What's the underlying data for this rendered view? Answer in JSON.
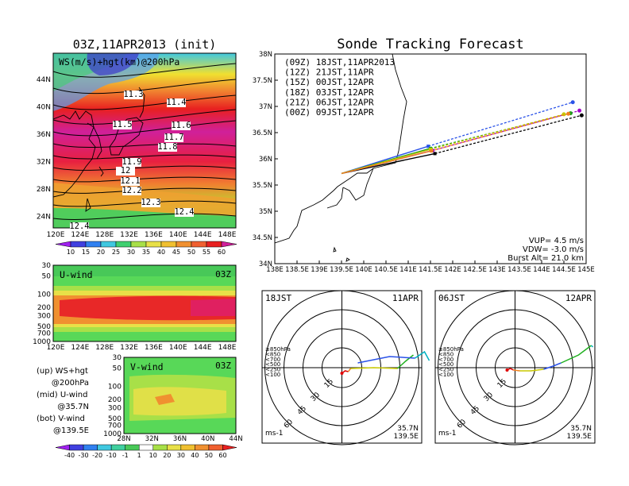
{
  "left": {
    "title": "03Z,11APR2013 (init)",
    "map_label": "WS(m/s)+hgt(km)@200hPa",
    "map_lat_ticks": [
      "44N",
      "40N",
      "36N",
      "32N",
      "28N",
      "24N"
    ],
    "lon_ticks": [
      "120E",
      "124E",
      "128E",
      "132E",
      "136E",
      "140E",
      "144E",
      "148E"
    ],
    "contour_labels": [
      "11.3",
      "11.4",
      "11.5",
      "11.6",
      "11.7",
      "11.8",
      "11.9",
      "12",
      "12.1",
      "12.2",
      "12.3",
      "12.4",
      "12.4"
    ],
    "colorbar_top": [
      "10",
      "15",
      "20",
      "25",
      "30",
      "35",
      "40",
      "45",
      "50",
      "55",
      "60"
    ],
    "uwind": {
      "label": "U-wind",
      "time": "03Z",
      "p_ticks": [
        "30",
        "50",
        "100",
        "200",
        "300",
        "500",
        "700",
        "1000"
      ]
    },
    "vwind": {
      "label": "V-wind",
      "time": "03Z",
      "p_ticks": [
        "30",
        "50",
        "100",
        "200",
        "300",
        "500",
        "700",
        "1000"
      ],
      "lat_ticks": [
        "28N",
        "32N",
        "36N",
        "40N",
        "44N"
      ]
    },
    "legend_lines": [
      "(up) WS+hgt",
      "@200hPa",
      "(mid) U-wind",
      "@35.7N",
      "(bot) V-wind",
      "@139.5E"
    ],
    "colorbar_bottom": [
      "-40",
      "-30",
      "-20",
      "-10",
      "-1",
      "1",
      "10",
      "20",
      "30",
      "40",
      "50",
      "60"
    ]
  },
  "right": {
    "title": "Sonde Tracking Forecast",
    "legend": [
      {
        "text": "(09Z)  18JST,11APR2013",
        "color": "#000000"
      },
      {
        "text": "(12Z)  21JST,11APR",
        "color": "#a000c8"
      },
      {
        "text": "(15Z)  00JST,12APR",
        "color": "#2a52e8"
      },
      {
        "text": "(18Z)  03JST,12APR",
        "color": "#1aa01a"
      },
      {
        "text": "(21Z)  06JST,12APR",
        "color": "#c8c800"
      },
      {
        "text": "(00Z)  09JST,12APR",
        "color": "#f08020"
      }
    ],
    "info": [
      "VUP= 4.5 m/s",
      "VDW= -3.0 m/s",
      "Burst Alt= 21.0 km"
    ],
    "lat_ticks": [
      "38N",
      "37.5N",
      "37N",
      "36.5N",
      "36N",
      "35.5N",
      "35N",
      "34.5N",
      "34N"
    ],
    "lon_ticks": [
      "138E",
      "138.5E",
      "139E",
      "139.5E",
      "140E",
      "140.5E",
      "141E",
      "141.5E",
      "142E",
      "142.5E",
      "143E",
      "143.5E",
      "144E",
      "144.5E",
      "145E"
    ],
    "hodo1": {
      "left": "18JST",
      "right": "11APR",
      "loc1": "35.7N",
      "loc2": "139.5E",
      "unit": "ms-1"
    },
    "hodo2": {
      "left": "06JST",
      "right": "12APR",
      "loc1": "35.7N",
      "loc2": "139.5E",
      "unit": "ms-1"
    },
    "ring_labels": [
      "15",
      "30",
      "45",
      "60"
    ],
    "hodo_legend": [
      {
        "text": "≥850hPa",
        "color": "#e00000"
      },
      {
        "text": "<850",
        "color": "#f08020"
      },
      {
        "text": "<700",
        "color": "#c8c800"
      },
      {
        "text": "<500",
        "color": "#20b020"
      },
      {
        "text": "<250",
        "color": "#00b0c0"
      },
      {
        "text": "<100",
        "color": "#2a52e8"
      }
    ]
  },
  "chart_data": [
    {
      "type": "line",
      "title": "Sonde Tracking Forecast",
      "xlabel": "",
      "ylabel": "",
      "xlim": [
        138,
        145
      ],
      "ylim": [
        34,
        38
      ],
      "series": [
        {
          "name": "(09Z) 18JST,11APR2013",
          "x": [
            139.5,
            141.6,
            144.9
          ],
          "y": [
            35.72,
            36.1,
            36.83
          ]
        },
        {
          "name": "(12Z) 21JST,11APR",
          "x": [
            139.5,
            141.55,
            144.85
          ],
          "y": [
            35.72,
            36.16,
            36.92
          ]
        },
        {
          "name": "(15Z) 00JST,12APR",
          "x": [
            139.5,
            141.45,
            144.7
          ],
          "y": [
            35.72,
            36.24,
            37.08
          ]
        },
        {
          "name": "(18Z) 03JST,12APR",
          "x": [
            139.5,
            141.5,
            144.65
          ],
          "y": [
            35.72,
            36.2,
            36.87
          ]
        },
        {
          "name": "(21Z) 06JST,12APR",
          "x": [
            139.5,
            141.5,
            144.5
          ],
          "y": [
            35.72,
            36.18,
            36.85
          ]
        },
        {
          "name": "(00Z) 09JST,12APR",
          "x": [
            139.5,
            141.52,
            144.6
          ],
          "y": [
            35.72,
            36.15,
            36.86
          ]
        }
      ]
    },
    {
      "type": "heatmap",
      "title": "03Z,11APR2013 (init)",
      "xlabel": "",
      "ylabel": "",
      "x_ticks": [
        "120E",
        "124E",
        "128E",
        "132E",
        "136E",
        "140E",
        "144E",
        "148E"
      ],
      "y_ticks": [
        "44N",
        "40N",
        "36N",
        "32N",
        "28N",
        "24N"
      ],
      "colorbar": [
        10,
        15,
        20,
        25,
        30,
        35,
        40,
        45,
        50,
        55,
        60
      ]
    }
  ]
}
